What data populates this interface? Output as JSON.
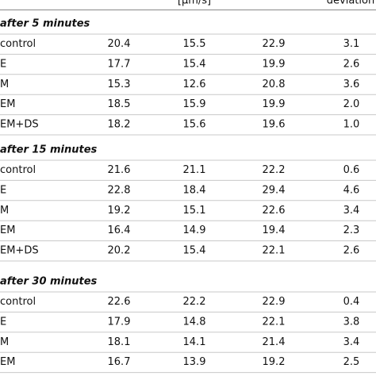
{
  "header": {
    "unit": "[µm/s]",
    "deviation": "deviation"
  },
  "sections": [
    {
      "title": "after 5 minutes",
      "rows": [
        [
          "control",
          "20.4",
          "15.5",
          "22.9",
          "3.1"
        ],
        [
          "E",
          "17.7",
          "15.4",
          "19.9",
          "2.6"
        ],
        [
          "M",
          "15.3",
          "12.6",
          "20.8",
          "3.6"
        ],
        [
          "EM",
          "18.5",
          "15.9",
          "19.9",
          "2.0"
        ],
        [
          "EM+DS",
          "18.2",
          "15.6",
          "19.6",
          "1.0"
        ]
      ]
    },
    {
      "title": "after 15 minutes",
      "rows": [
        [
          "control",
          "21.6",
          "21.1",
          "22.2",
          "0.6"
        ],
        [
          "E",
          "22.8",
          "18.4",
          "29.4",
          "4.6"
        ],
        [
          "M",
          "19.2",
          "15.1",
          "22.6",
          "3.4"
        ],
        [
          "EM",
          "16.4",
          "14.9",
          "19.4",
          "2.3"
        ],
        [
          "EM+DS",
          "20.2",
          "15.4",
          "22.1",
          "2.6"
        ]
      ]
    },
    {
      "title": "after 30 minutes",
      "rows": [
        [
          "control",
          "22.6",
          "22.2",
          "22.9",
          "0.4"
        ],
        [
          "E",
          "17.9",
          "14.8",
          "22.1",
          "3.8"
        ],
        [
          "M",
          "18.1",
          "14.1",
          "21.4",
          "3.4"
        ],
        [
          "EM",
          "16.7",
          "13.9",
          "19.2",
          "2.5"
        ]
      ]
    }
  ]
}
